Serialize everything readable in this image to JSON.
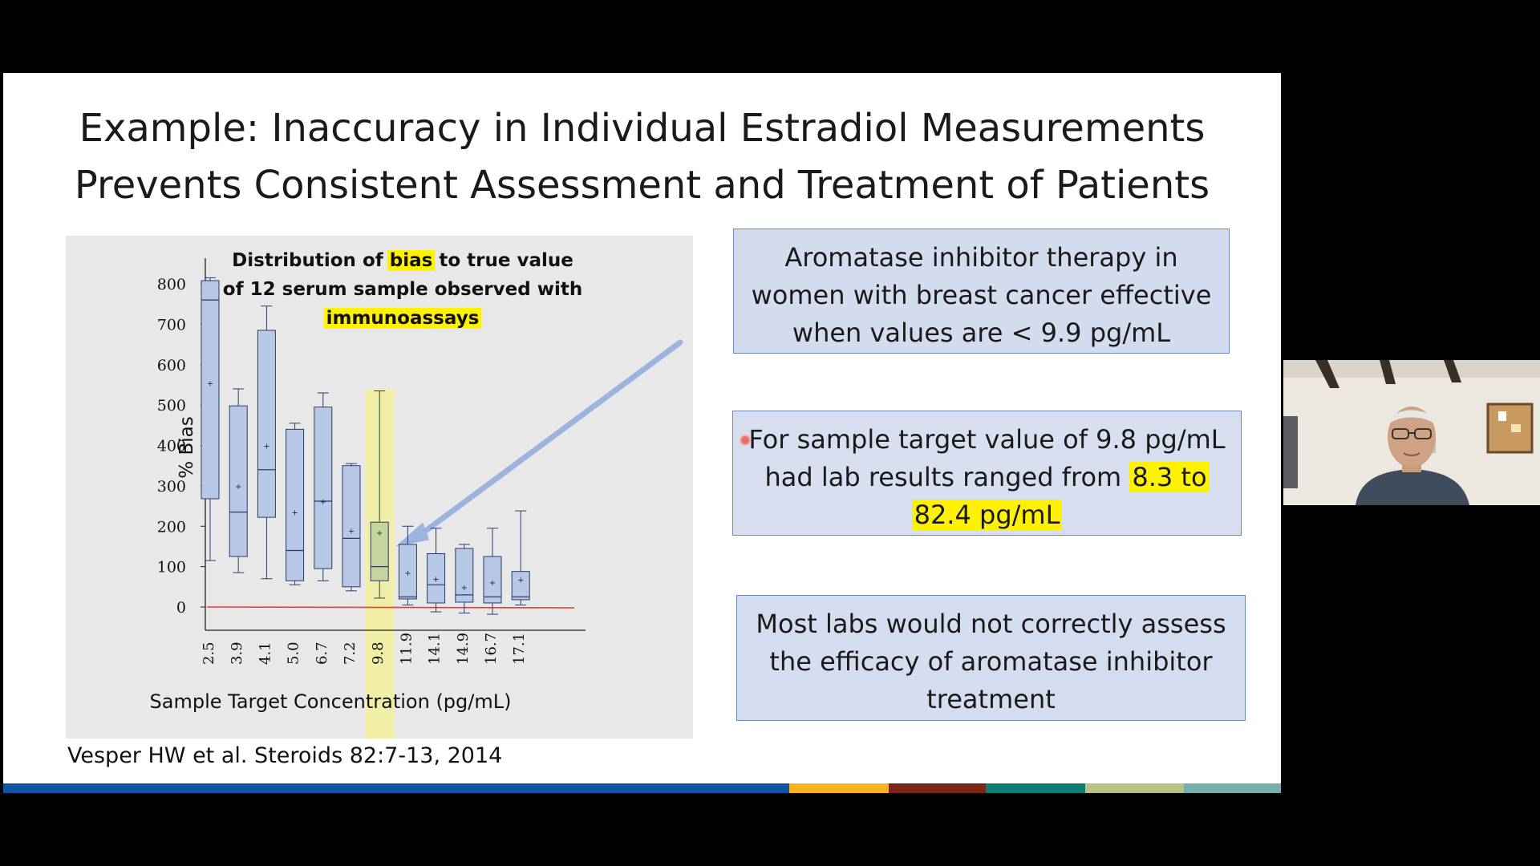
{
  "slide": {
    "title_line1": "Example: Inaccuracy in Individual Estradiol Measurements",
    "title_line2": "Prevents Consistent Assessment and Treatment of Patients",
    "citation": "Vesper HW et al. Steroids 82:7-13, 2014",
    "boxes": {
      "box1": "Aromatase inhibitor therapy in women with breast cancer effective when values are < 9.9 pg/mL",
      "box2_line1": "For sample target value of 9.8 pg/mL",
      "box2_line2a": "had lab results ranged  from ",
      "box2_line2b": "8.3 to",
      "box2_line3": "82.4 pg/mL",
      "box3": "Most labs would not correctly assess the efficacy  of aromatase inhibitor treatment"
    },
    "footer_colors": [
      "#0f56a8",
      "#f7b21d",
      "#7a2612",
      "#0d8076",
      "#bcc282",
      "#76b0ad"
    ]
  },
  "chart_data": {
    "type": "box",
    "title_parts": [
      "Distribution of ",
      "bias",
      " to true value"
    ],
    "title_line2": "of 12 serum sample observed with",
    "title_line3": "immunoassays",
    "xlabel": "Sample Target Concentration (pg/mL)",
    "ylabel": "% Bias",
    "ylim": [
      0,
      800
    ],
    "yticks": [
      0,
      100,
      200,
      300,
      400,
      500,
      600,
      700,
      800
    ],
    "categories": [
      "2.5",
      "3.9",
      "4.1",
      "5.0",
      "6.7",
      "7.2",
      "9.8",
      "11.9",
      "14.1",
      "14.9",
      "16.7",
      "17.1"
    ],
    "boxes": [
      {
        "x": "2.5",
        "whisker_low": 115,
        "q1": 268,
        "median": 760,
        "q3": 808,
        "whisker_high": 815,
        "mean": 555
      },
      {
        "x": "3.9",
        "whisker_low": 85,
        "q1": 125,
        "median": 235,
        "q3": 498,
        "whisker_high": 540,
        "mean": 300
      },
      {
        "x": "4.1",
        "whisker_low": 70,
        "q1": 222,
        "median": 340,
        "q3": 685,
        "whisker_high": 745,
        "mean": 400
      },
      {
        "x": "5.0",
        "whisker_low": 55,
        "q1": 65,
        "median": 140,
        "q3": 440,
        "whisker_high": 455,
        "mean": 235
      },
      {
        "x": "6.7",
        "whisker_low": 65,
        "q1": 95,
        "median": 262,
        "q3": 495,
        "whisker_high": 530,
        "mean": 262
      },
      {
        "x": "7.2",
        "whisker_low": 40,
        "q1": 50,
        "median": 170,
        "q3": 350,
        "whisker_high": 355,
        "mean": 190
      },
      {
        "x": "9.8",
        "whisker_low": 22,
        "q1": 65,
        "median": 100,
        "q3": 210,
        "whisker_high": 535,
        "mean": 185
      },
      {
        "x": "11.9",
        "whisker_low": 5,
        "q1": 20,
        "median": 25,
        "q3": 155,
        "whisker_high": 200,
        "mean": 85
      },
      {
        "x": "14.1",
        "whisker_low": -12,
        "q1": 10,
        "median": 55,
        "q3": 132,
        "whisker_high": 195,
        "mean": 70
      },
      {
        "x": "14.9",
        "whisker_low": -15,
        "q1": 12,
        "median": 30,
        "q3": 145,
        "whisker_high": 155,
        "mean": 50
      },
      {
        "x": "16.7",
        "whisker_low": -18,
        "q1": 10,
        "median": 25,
        "q3": 125,
        "whisker_high": 195,
        "mean": 62
      },
      {
        "x": "17.1",
        "whisker_low": 5,
        "q1": 18,
        "median": 25,
        "q3": 88,
        "whisker_high": 238,
        "mean": 68
      }
    ],
    "highlight_category": "9.8",
    "reference_line": 0,
    "colors": {
      "box_fill": "#b6c8e6",
      "box_stroke": "#2a3d6a",
      "highlight": "#f2f09a",
      "highlight_box": "#c6d49e",
      "ref_line": "#ee3a3a",
      "arrow": "#9db3df"
    }
  }
}
